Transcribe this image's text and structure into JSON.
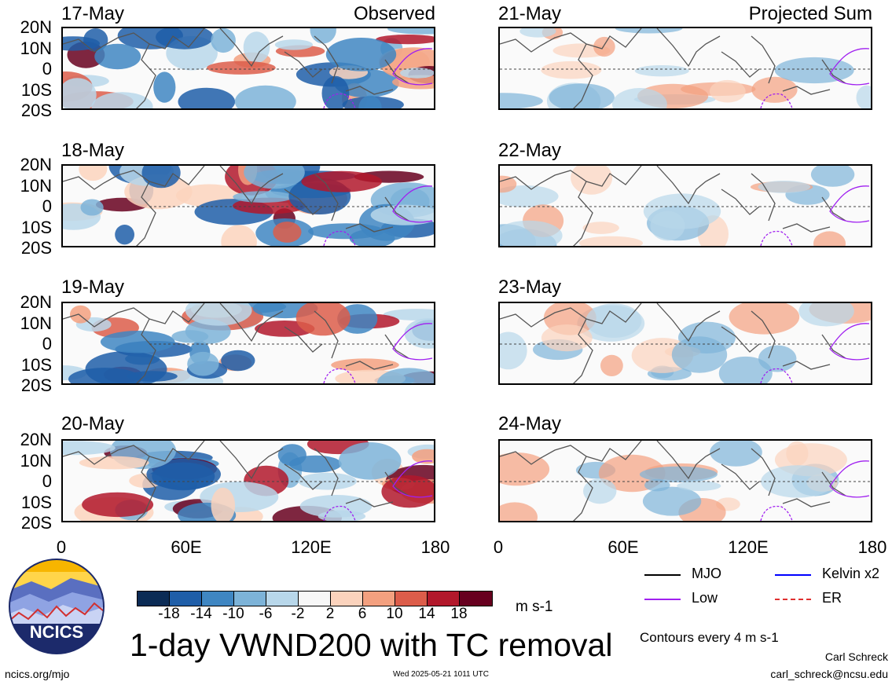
{
  "observed_label": "Observed",
  "projected_label": "Projected Sum",
  "observed_dates": [
    "17-May",
    "18-May",
    "19-May",
    "20-May"
  ],
  "projected_dates": [
    "21-May",
    "22-May",
    "23-May",
    "24-May"
  ],
  "lat_labels": [
    "20N",
    "10N",
    "0",
    "10S",
    "20S"
  ],
  "lon_labels": [
    "0",
    "60E",
    "120E",
    "180"
  ],
  "colorbar": {
    "labels": [
      "-18",
      "-14",
      "-10",
      "-6",
      "-2",
      "2",
      "6",
      "10",
      "14",
      "18"
    ],
    "units": "m s-1",
    "colors": [
      "#0b2b55",
      "#1f5ea8",
      "#3f86c2",
      "#7db3d8",
      "#b8d7ea",
      "#f7f7f7",
      "#fbd3bd",
      "#f3a07f",
      "#dc5d4a",
      "#b2182b",
      "#67001f"
    ]
  },
  "title": "1-day VWND200 with TC removal",
  "logo_text": "NCICS",
  "legend": {
    "items": [
      {
        "label": "MJO",
        "color": "#000000"
      },
      {
        "label": "Kelvin x2",
        "color": "#0000ff"
      },
      {
        "label": "Low",
        "color": "#a020f0"
      },
      {
        "label": "ER",
        "color": "#e03030"
      }
    ],
    "contours": "Contours every 4 m s-1"
  },
  "author": "Carl Schreck",
  "email": "carl_schreck@ncsu.edu",
  "website": "ncics.org/mjo",
  "timestamp": "Wed 2025-05-21 1011 UTC"
}
